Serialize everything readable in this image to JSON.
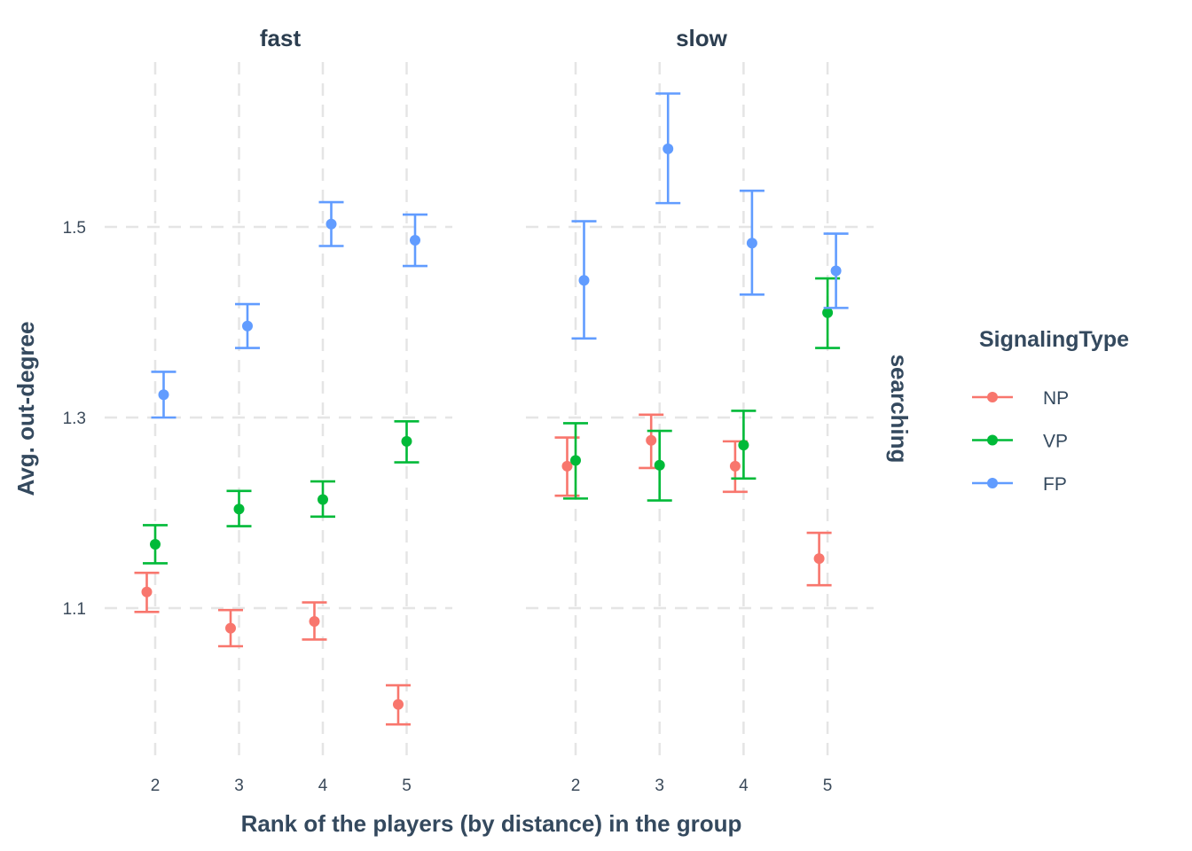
{
  "chart_data": {
    "type": "scatter",
    "subtype": "point-with-errorbars, faceted",
    "xlabel": "Rank of the players (by distance) in the group",
    "ylabel": "Avg. out-degree",
    "row_facet_label": "searching",
    "facets": [
      "fast",
      "slow"
    ],
    "x_ticks": [
      "2",
      "3",
      "4",
      "5"
    ],
    "y_ticks": [
      1.1,
      1.3,
      1.5
    ],
    "y_tick_labels": [
      "1.1",
      "1.3",
      "1.5"
    ],
    "ylim": [
      0.95,
      1.68
    ],
    "grid": true,
    "legend": {
      "title": "SignalingType",
      "placement": "right",
      "entries": [
        {
          "name": "NP",
          "color": "#F8766D"
        },
        {
          "name": "VP",
          "color": "#00BA38"
        },
        {
          "name": "FP",
          "color": "#619CFF"
        }
      ]
    },
    "series": [
      {
        "facet": "fast",
        "name": "NP",
        "x": [
          2,
          3,
          4,
          5
        ],
        "y": [
          1.117,
          1.079,
          1.086,
          0.999
        ],
        "ymin": [
          1.096,
          1.06,
          1.067,
          0.978
        ],
        "ymax": [
          1.137,
          1.098,
          1.106,
          1.019
        ]
      },
      {
        "facet": "fast",
        "name": "VP",
        "x": [
          2,
          3,
          4,
          5
        ],
        "y": [
          1.167,
          1.204,
          1.214,
          1.275
        ],
        "ymin": [
          1.147,
          1.186,
          1.196,
          1.253
        ],
        "ymax": [
          1.187,
          1.223,
          1.233,
          1.296
        ]
      },
      {
        "facet": "fast",
        "name": "FP",
        "x": [
          2,
          3,
          4,
          5
        ],
        "y": [
          1.324,
          1.396,
          1.503,
          1.486
        ],
        "ymin": [
          1.3,
          1.373,
          1.48,
          1.459
        ],
        "ymax": [
          1.348,
          1.419,
          1.526,
          1.513
        ]
      },
      {
        "facet": "slow",
        "name": "NP",
        "x": [
          2,
          3,
          4,
          5
        ],
        "y": [
          1.249,
          1.276,
          1.249,
          1.152
        ],
        "ymin": [
          1.218,
          1.247,
          1.222,
          1.124
        ],
        "ymax": [
          1.279,
          1.303,
          1.275,
          1.179
        ]
      },
      {
        "facet": "slow",
        "name": "VP",
        "x": [
          2,
          3,
          4,
          5
        ],
        "y": [
          1.255,
          1.25,
          1.271,
          1.41
        ],
        "ymin": [
          1.215,
          1.213,
          1.236,
          1.373
        ],
        "ymax": [
          1.294,
          1.286,
          1.307,
          1.446
        ]
      },
      {
        "facet": "slow",
        "name": "FP",
        "x": [
          2,
          3,
          4,
          5
        ],
        "y": [
          1.444,
          1.582,
          1.483,
          1.454
        ],
        "ymin": [
          1.383,
          1.525,
          1.429,
          1.415
        ],
        "ymax": [
          1.506,
          1.64,
          1.538,
          1.493
        ]
      }
    ]
  }
}
